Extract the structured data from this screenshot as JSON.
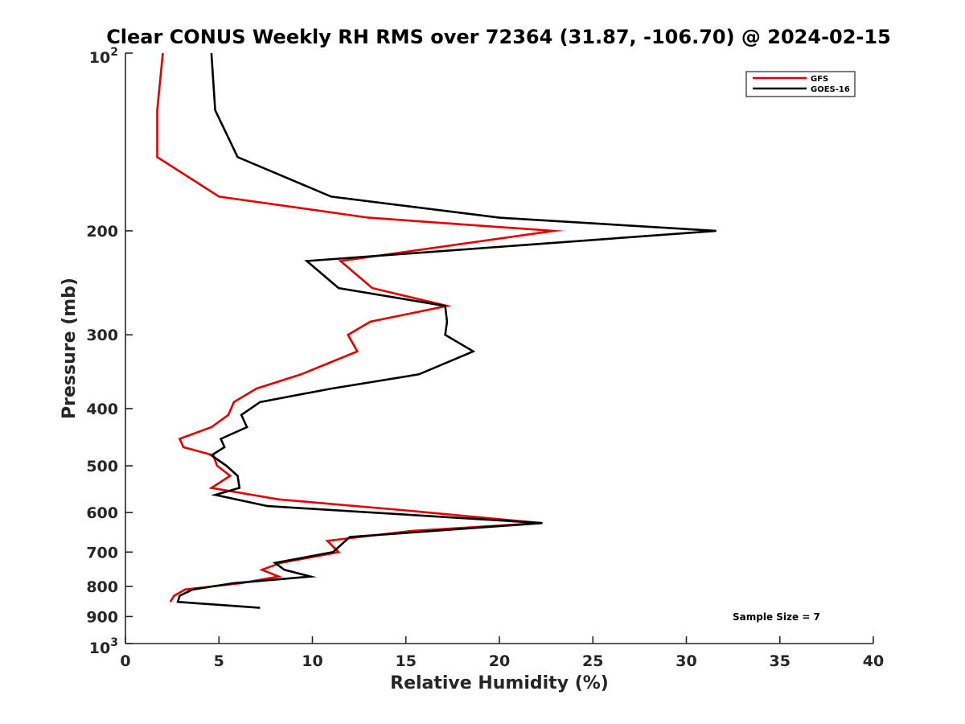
{
  "chart_data": {
    "type": "line",
    "title": "Clear CONUS Weekly RH RMS over 72364 (31.87, -106.70) @ 2024-02-15",
    "xlabel": "Relative Humidity (%)",
    "ylabel": "Pressure (mb)",
    "xlim": [
      0,
      40
    ],
    "ylim": [
      100,
      1000
    ],
    "y_scale": "log",
    "y_reversed": true,
    "grid": false,
    "legend_position": "top-right",
    "x_ticks": [
      "0",
      "5",
      "10",
      "15",
      "20",
      "25",
      "30",
      "35",
      "40"
    ],
    "y_ticks": [
      {
        "value": 100,
        "base": "10",
        "exp": "2"
      },
      {
        "value": 200,
        "label": "200"
      },
      {
        "value": 300,
        "label": "300"
      },
      {
        "value": 400,
        "label": "400"
      },
      {
        "value": 500,
        "label": "500"
      },
      {
        "value": 600,
        "label": "600"
      },
      {
        "value": 700,
        "label": "700"
      },
      {
        "value": 800,
        "label": "800"
      },
      {
        "value": 900,
        "label": "900"
      },
      {
        "value": 1000,
        "base": "10",
        "exp": "3"
      }
    ],
    "annotation": "Sample Size = 7",
    "series": [
      {
        "name": "GFS",
        "color": "#e00000",
        "points": [
          [
            2.0,
            100
          ],
          [
            1.7,
            125
          ],
          [
            1.7,
            150
          ],
          [
            5.0,
            175
          ],
          [
            13.0,
            190
          ],
          [
            22.9,
            200
          ],
          [
            11.5,
            225
          ],
          [
            13.2,
            250
          ],
          [
            17.2,
            268
          ],
          [
            13.1,
            285
          ],
          [
            11.9,
            300
          ],
          [
            12.4,
            320
          ],
          [
            9.4,
            350
          ],
          [
            7.0,
            370
          ],
          [
            5.8,
            390
          ],
          [
            5.5,
            410
          ],
          [
            4.6,
            430
          ],
          [
            2.9,
            450
          ],
          [
            3.1,
            465
          ],
          [
            4.7,
            480
          ],
          [
            4.9,
            500
          ],
          [
            5.6,
            520
          ],
          [
            4.6,
            545
          ],
          [
            8.2,
            570
          ],
          [
            15.0,
            595
          ],
          [
            22.2,
            625
          ],
          [
            15.2,
            645
          ],
          [
            10.8,
            670
          ],
          [
            11.4,
            700
          ],
          [
            8.3,
            730
          ],
          [
            7.3,
            750
          ],
          [
            8.2,
            770
          ],
          [
            6.2,
            790
          ],
          [
            3.2,
            810
          ],
          [
            2.6,
            830
          ],
          [
            2.4,
            850
          ]
        ]
      },
      {
        "name": "GOES-16",
        "color": "#000000",
        "points": [
          [
            4.6,
            100
          ],
          [
            4.8,
            125
          ],
          [
            6.0,
            150
          ],
          [
            11.0,
            175
          ],
          [
            20.0,
            190
          ],
          [
            31.6,
            200
          ],
          [
            9.7,
            225
          ],
          [
            11.4,
            250
          ],
          [
            17.1,
            268
          ],
          [
            17.2,
            285
          ],
          [
            17.1,
            300
          ],
          [
            18.6,
            320
          ],
          [
            15.7,
            350
          ],
          [
            11.0,
            370
          ],
          [
            7.2,
            390
          ],
          [
            6.2,
            410
          ],
          [
            6.5,
            430
          ],
          [
            5.1,
            450
          ],
          [
            5.3,
            465
          ],
          [
            4.6,
            480
          ],
          [
            5.4,
            500
          ],
          [
            6.0,
            520
          ],
          [
            6.1,
            545
          ],
          [
            4.8,
            560
          ],
          [
            7.6,
            585
          ],
          [
            22.3,
            625
          ],
          [
            12.0,
            660
          ],
          [
            11.1,
            700
          ],
          [
            8.0,
            730
          ],
          [
            8.5,
            750
          ],
          [
            9.9,
            770
          ],
          [
            5.8,
            790
          ],
          [
            3.6,
            810
          ],
          [
            2.9,
            830
          ],
          [
            2.8,
            850
          ],
          [
            7.2,
            870
          ]
        ]
      }
    ]
  }
}
